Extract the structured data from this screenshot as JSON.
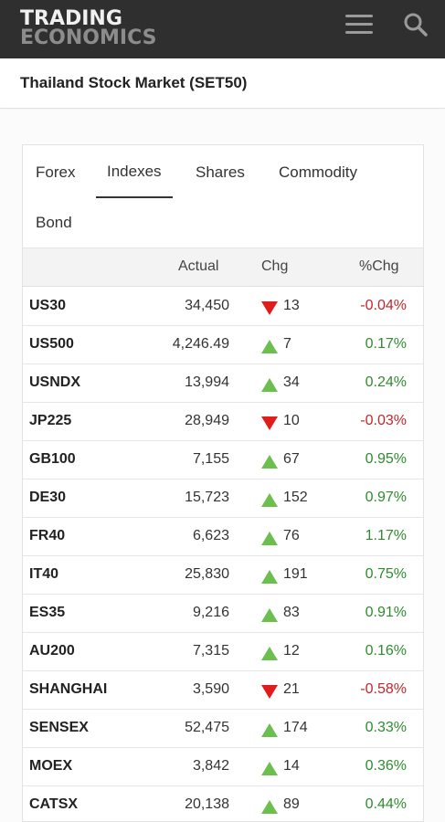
{
  "header": {
    "logo_line1": "TRADING",
    "logo_line2": "ECONOMICS",
    "colors": {
      "bar": "#2f2f2f",
      "logo_top": "#f0f0f0",
      "logo_bottom": "#8c8c8c"
    }
  },
  "page": {
    "title": "Thailand Stock Market (SET50)"
  },
  "tabs": [
    {
      "label": "Forex",
      "active": false
    },
    {
      "label": "Indexes",
      "active": true
    },
    {
      "label": "Shares",
      "active": false
    },
    {
      "label": "Commodity",
      "active": false
    },
    {
      "label": "Bond",
      "active": false
    }
  ],
  "table": {
    "columns": [
      "",
      "Actual",
      "Chg",
      "%Chg"
    ],
    "colors": {
      "up_triangle": "#6cbf4e",
      "down_triangle": "#e01c1c",
      "positive": "#2e8b2e",
      "negative": "#c0272d"
    },
    "rows": [
      {
        "symbol": "US30",
        "actual": "34,450",
        "direction": "down",
        "chg": "13",
        "pchg": "-0.04%"
      },
      {
        "symbol": "US500",
        "actual": "4,246.49",
        "direction": "up",
        "chg": "7",
        "pchg": "0.17%"
      },
      {
        "symbol": "USNDX",
        "actual": "13,994",
        "direction": "up",
        "chg": "34",
        "pchg": "0.24%"
      },
      {
        "symbol": "JP225",
        "actual": "28,949",
        "direction": "down",
        "chg": "10",
        "pchg": "-0.03%"
      },
      {
        "symbol": "GB100",
        "actual": "7,155",
        "direction": "up",
        "chg": "67",
        "pchg": "0.95%"
      },
      {
        "symbol": "DE30",
        "actual": "15,723",
        "direction": "up",
        "chg": "152",
        "pchg": "0.97%"
      },
      {
        "symbol": "FR40",
        "actual": "6,623",
        "direction": "up",
        "chg": "76",
        "pchg": "1.17%"
      },
      {
        "symbol": "IT40",
        "actual": "25,830",
        "direction": "up",
        "chg": "191",
        "pchg": "0.75%"
      },
      {
        "symbol": "ES35",
        "actual": "9,216",
        "direction": "up",
        "chg": "83",
        "pchg": "0.91%"
      },
      {
        "symbol": "AU200",
        "actual": "7,315",
        "direction": "up",
        "chg": "12",
        "pchg": "0.16%"
      },
      {
        "symbol": "SHANGHAI",
        "actual": "3,590",
        "direction": "down",
        "chg": "21",
        "pchg": "-0.58%"
      },
      {
        "symbol": "SENSEX",
        "actual": "52,475",
        "direction": "up",
        "chg": "174",
        "pchg": "0.33%"
      },
      {
        "symbol": "MOEX",
        "actual": "3,842",
        "direction": "up",
        "chg": "14",
        "pchg": "0.36%"
      },
      {
        "symbol": "CATSX",
        "actual": "20,138",
        "direction": "up",
        "chg": "89",
        "pchg": "0.44%"
      }
    ]
  }
}
